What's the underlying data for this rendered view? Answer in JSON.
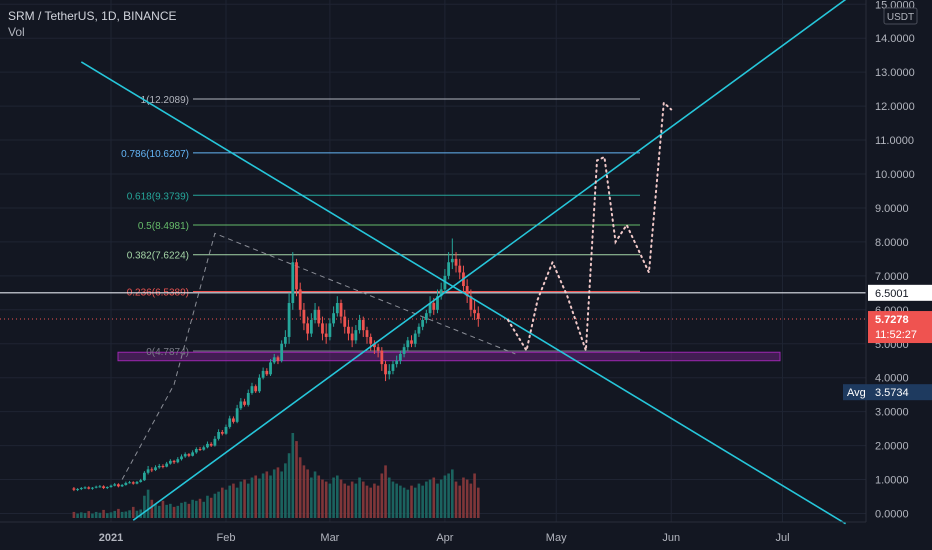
{
  "header": {
    "symbol": "SRM / TetherUS",
    "interval": "1D",
    "exchange": "BINANCE",
    "title_sep": ", ",
    "volume_label": "Vol"
  },
  "colors": {
    "background": "#131722",
    "up": "#26a69a",
    "down": "#ef5350",
    "trendline": "#26c6da",
    "zone": "#9c27b0",
    "dotted_path": "#f0c8c8"
  },
  "axis": {
    "currency": "USDT",
    "y_ticks": [
      "0.0000",
      "1.0000",
      "2.0000",
      "3.0000",
      "4.0000",
      "5.0000",
      "6.0000",
      "7.0000",
      "8.0000",
      "9.0000",
      "10.0000",
      "11.0000",
      "12.0000",
      "13.0000",
      "14.0000",
      "15.0000"
    ],
    "x_ticks": [
      "2021",
      "Feb",
      "Mar",
      "Apr",
      "May",
      "Jun",
      "Jul"
    ]
  },
  "price_labels": {
    "level_line": "6.5001",
    "last_price": "5.7278",
    "countdown": "11:52:27",
    "avg_label": "Avg",
    "avg_value": "3.5734"
  },
  "chart_data": {
    "type": "candlestick",
    "symbol": "SRM / TetherUS",
    "interval": "1D",
    "y_unit": "USDT",
    "y_range": [
      0,
      15
    ],
    "x_range": [
      "2020-12-21",
      "2021-07-20"
    ],
    "fib_levels": [
      {
        "label": "1(12.2089)",
        "value": 12.2089,
        "color": "#b2b5be"
      },
      {
        "label": "0.786(10.6207)",
        "value": 10.6207,
        "color": "#64b5f6"
      },
      {
        "label": "0.618(9.3739)",
        "value": 9.3739,
        "color": "#26a69a"
      },
      {
        "label": "0.5(8.4981)",
        "value": 8.4981,
        "color": "#66bb6a"
      },
      {
        "label": "0.382(7.6224)",
        "value": 7.6224,
        "color": "#a5d6a7"
      },
      {
        "label": "0.236(6.5389)",
        "value": 6.5389,
        "color": "#ef5350"
      },
      {
        "label": "0(4.7874)",
        "value": 4.7874,
        "color": "#787b86"
      }
    ],
    "horizontal_level": 6.5001,
    "last_price": 5.7278,
    "avg_price": 3.5734,
    "support_zone": {
      "from": 4.5,
      "to": 4.75
    },
    "trendlines": [
      {
        "from": [
          "2020-12-24",
          13.3
        ],
        "to": [
          "2021-07-18",
          -0.3
        ]
      },
      {
        "from": [
          "2021-01-07",
          -0.2
        ],
        "to": [
          "2021-07-20",
          15.3
        ]
      }
    ],
    "projection_path": [
      [
        "2021-04-18",
        5.7
      ],
      [
        "2021-04-23",
        4.8
      ],
      [
        "2021-04-26",
        6.3
      ],
      [
        "2021-04-30",
        7.4
      ],
      [
        "2021-05-04",
        6.4
      ],
      [
        "2021-05-09",
        4.8
      ],
      [
        "2021-05-12",
        10.4
      ],
      [
        "2021-05-14",
        10.5
      ],
      [
        "2021-05-17",
        8.0
      ],
      [
        "2021-05-20",
        8.5
      ],
      [
        "2021-05-26",
        7.1
      ],
      [
        "2021-05-30",
        12.1
      ],
      [
        "2021-06-01",
        11.9
      ]
    ],
    "dashed_path": [
      [
        "2021-01-04",
        1.0
      ],
      [
        "2021-01-18",
        3.8
      ],
      [
        "2021-01-29",
        8.25
      ],
      [
        "2021-04-20",
        4.7
      ]
    ],
    "candles": {
      "start": "2020-12-22",
      "open": [
        0.74,
        0.7,
        0.72,
        0.75,
        0.77,
        0.73,
        0.76,
        0.79,
        0.8,
        0.75,
        0.78,
        0.82,
        0.86,
        0.8,
        0.84,
        0.9,
        0.92,
        0.88,
        0.93,
        0.98,
        1.2,
        1.3,
        1.28,
        1.36,
        1.4,
        1.38,
        1.47,
        1.55,
        1.51,
        1.6,
        1.68,
        1.75,
        1.7,
        1.8,
        1.9,
        1.88,
        1.95,
        2.05,
        2.0,
        2.2,
        2.4,
        2.35,
        2.55,
        2.8,
        2.7,
        3.1,
        3.3,
        3.2,
        3.55,
        3.75,
        3.6,
        4.0,
        4.2,
        4.1,
        4.45,
        4.6,
        4.5,
        5.0,
        5.2,
        6.2,
        7.4,
        6.6,
        6.0,
        5.6,
        5.3,
        5.7,
        6.0,
        5.6,
        5.3,
        5.2,
        5.6,
        5.9,
        6.2,
        5.8,
        5.5,
        5.3,
        5.1,
        5.4,
        5.7,
        5.4,
        5.2,
        5.0,
        4.9,
        4.8,
        4.4,
        4.1,
        4.2,
        4.4,
        4.5,
        4.7,
        4.9,
        5.1,
        5.0,
        5.3,
        5.5,
        5.7,
        5.9,
        6.2,
        6.0,
        6.4,
        6.6,
        7.0,
        7.4,
        7.5,
        7.3,
        7.1,
        6.7,
        6.4,
        6.0,
        5.9
      ],
      "close": [
        0.7,
        0.72,
        0.75,
        0.77,
        0.73,
        0.76,
        0.79,
        0.8,
        0.75,
        0.78,
        0.82,
        0.86,
        0.8,
        0.84,
        0.9,
        0.92,
        0.88,
        0.93,
        0.98,
        1.2,
        1.3,
        1.28,
        1.36,
        1.4,
        1.38,
        1.47,
        1.55,
        1.51,
        1.6,
        1.68,
        1.75,
        1.7,
        1.8,
        1.9,
        1.88,
        1.95,
        2.05,
        2.0,
        2.2,
        2.4,
        2.35,
        2.55,
        2.8,
        2.7,
        3.1,
        3.3,
        3.2,
        3.55,
        3.75,
        3.6,
        4.0,
        4.2,
        4.1,
        4.45,
        4.6,
        4.5,
        5.0,
        5.2,
        6.2,
        7.4,
        6.6,
        6.0,
        5.6,
        5.3,
        5.7,
        6.0,
        5.6,
        5.3,
        5.2,
        5.6,
        5.9,
        6.2,
        5.8,
        5.5,
        5.3,
        5.1,
        5.4,
        5.7,
        5.4,
        5.2,
        5.0,
        4.9,
        4.8,
        4.4,
        4.1,
        4.2,
        4.4,
        4.5,
        4.7,
        4.9,
        5.1,
        5.0,
        5.3,
        5.5,
        5.7,
        5.9,
        6.2,
        6.0,
        6.4,
        6.6,
        7.0,
        7.4,
        7.5,
        7.3,
        7.1,
        6.7,
        6.4,
        6.0,
        5.9,
        5.73
      ],
      "high": [
        0.78,
        0.75,
        0.78,
        0.8,
        0.8,
        0.78,
        0.82,
        0.84,
        0.83,
        0.8,
        0.85,
        0.9,
        0.89,
        0.87,
        0.94,
        0.96,
        0.95,
        0.96,
        1.02,
        1.25,
        1.4,
        1.36,
        1.42,
        1.46,
        1.45,
        1.52,
        1.6,
        1.58,
        1.66,
        1.74,
        1.8,
        1.78,
        1.86,
        1.95,
        1.96,
        2.0,
        2.12,
        2.1,
        2.28,
        2.48,
        2.46,
        2.62,
        2.88,
        2.86,
        3.2,
        3.4,
        3.38,
        3.65,
        3.85,
        3.8,
        4.1,
        4.3,
        4.28,
        4.55,
        4.7,
        4.65,
        5.1,
        5.4,
        6.5,
        7.7,
        7.5,
        6.8,
        6.2,
        5.8,
        5.9,
        6.2,
        6.1,
        5.8,
        5.6,
        5.75,
        6.1,
        6.4,
        6.3,
        6.0,
        5.7,
        5.5,
        5.55,
        5.85,
        5.8,
        5.5,
        5.3,
        5.1,
        5.0,
        4.9,
        4.5,
        4.4,
        4.5,
        4.65,
        4.8,
        5.0,
        5.2,
        5.25,
        5.4,
        5.6,
        5.8,
        6.0,
        6.4,
        6.35,
        6.6,
        6.8,
        7.2,
        7.7,
        8.1,
        7.7,
        7.5,
        7.3,
        6.9,
        6.6,
        6.3,
        6.1
      ],
      "low": [
        0.66,
        0.66,
        0.69,
        0.72,
        0.71,
        0.7,
        0.74,
        0.76,
        0.72,
        0.72,
        0.76,
        0.8,
        0.77,
        0.78,
        0.82,
        0.88,
        0.85,
        0.86,
        0.91,
        0.96,
        1.15,
        1.22,
        1.25,
        1.32,
        1.33,
        1.36,
        1.44,
        1.46,
        1.48,
        1.56,
        1.64,
        1.66,
        1.68,
        1.76,
        1.84,
        1.85,
        1.92,
        1.96,
        1.97,
        2.15,
        2.3,
        2.32,
        2.5,
        2.65,
        2.66,
        3.05,
        3.15,
        3.15,
        3.5,
        3.55,
        3.55,
        3.95,
        4.05,
        4.05,
        4.4,
        4.4,
        4.45,
        4.9,
        5.0,
        6.0,
        6.4,
        5.8,
        5.4,
        5.1,
        5.2,
        5.6,
        5.5,
        5.1,
        5.0,
        5.1,
        5.5,
        5.8,
        5.6,
        5.3,
        5.1,
        4.9,
        5.0,
        5.3,
        5.2,
        5.0,
        4.8,
        4.7,
        4.6,
        4.2,
        3.9,
        3.95,
        4.1,
        4.3,
        4.4,
        4.6,
        4.8,
        4.9,
        4.9,
        5.2,
        5.4,
        5.6,
        5.8,
        5.85,
        5.9,
        6.3,
        6.5,
        6.9,
        7.2,
        7.1,
        6.9,
        6.5,
        6.2,
        5.8,
        5.7,
        5.5
      ],
      "volume": [
        30,
        22,
        28,
        25,
        34,
        22,
        30,
        26,
        40,
        24,
        28,
        35,
        45,
        30,
        32,
        38,
        55,
        36,
        42,
        110,
        140,
        90,
        70,
        60,
        85,
        65,
        70,
        55,
        60,
        75,
        80,
        70,
        90,
        85,
        95,
        80,
        110,
        100,
        120,
        130,
        150,
        140,
        160,
        170,
        150,
        180,
        190,
        170,
        200,
        210,
        195,
        220,
        230,
        210,
        240,
        250,
        230,
        270,
        320,
        420,
        380,
        300,
        260,
        240,
        200,
        230,
        210,
        190,
        180,
        170,
        200,
        210,
        190,
        170,
        160,
        180,
        170,
        200,
        180,
        160,
        150,
        170,
        160,
        220,
        260,
        200,
        180,
        170,
        160,
        150,
        140,
        160,
        150,
        170,
        160,
        180,
        190,
        200,
        170,
        190,
        210,
        220,
        240,
        180,
        160,
        200,
        190,
        170,
        220,
        150
      ]
    }
  }
}
